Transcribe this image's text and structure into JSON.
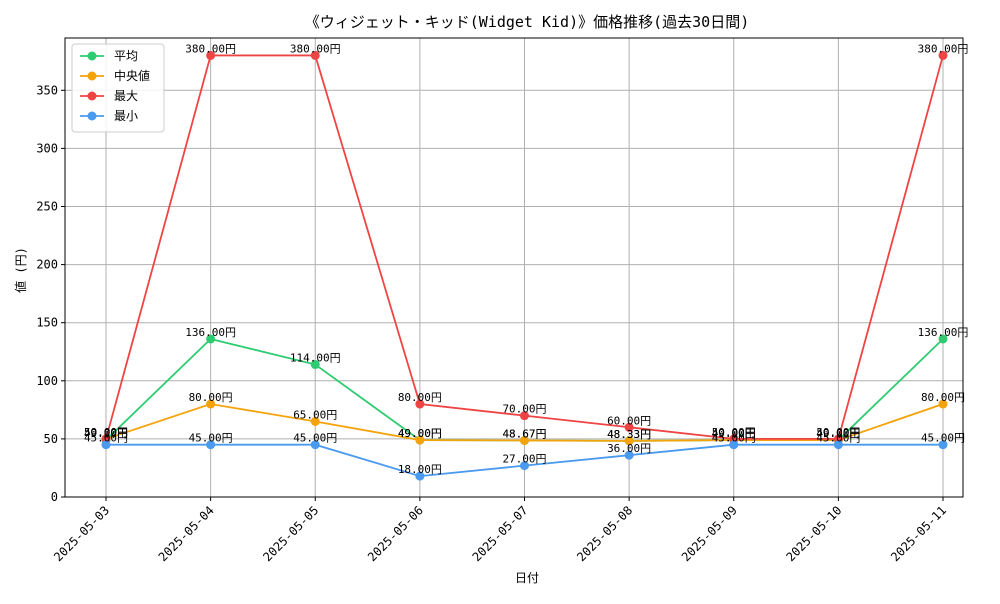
{
  "chart_data": {
    "type": "line",
    "title": "《ウィジェット・キッド(Widget Kid)》価格推移(過去30日間)",
    "xlabel": "日付",
    "ylabel": "値 (円)",
    "categories": [
      "2025-05-03",
      "2025-05-04",
      "2025-05-05",
      "2025-05-06",
      "2025-05-07",
      "2025-05-08",
      "2025-05-09",
      "2025-05-10",
      "2025-05-11"
    ],
    "ylim": [
      0,
      395
    ],
    "yticks": [
      0,
      50,
      100,
      150,
      200,
      250,
      300,
      350
    ],
    "grid": true,
    "legend_position": "top-left",
    "value_suffix": "円",
    "series": [
      {
        "name": "平均",
        "color": "#2ecc71",
        "values": [
          49.0,
          136.0,
          114.0,
          49.0,
          48.67,
          48.33,
          49.0,
          49.0,
          136.0
        ]
      },
      {
        "name": "中央値",
        "color": "#f5a30a",
        "values": [
          50.0,
          80.0,
          65.0,
          49.0,
          48.67,
          48.33,
          49.0,
          49.0,
          80.0
        ]
      },
      {
        "name": "最大",
        "color": "#ef4444",
        "values": [
          50.0,
          380.0,
          380.0,
          80.0,
          70.0,
          60.0,
          50.0,
          50.0,
          380.0
        ]
      },
      {
        "name": "最小",
        "color": "#4a9aef",
        "values": [
          45.0,
          45.0,
          45.0,
          18.0,
          27.0,
          36.0,
          45.0,
          45.0,
          45.0
        ]
      }
    ]
  }
}
